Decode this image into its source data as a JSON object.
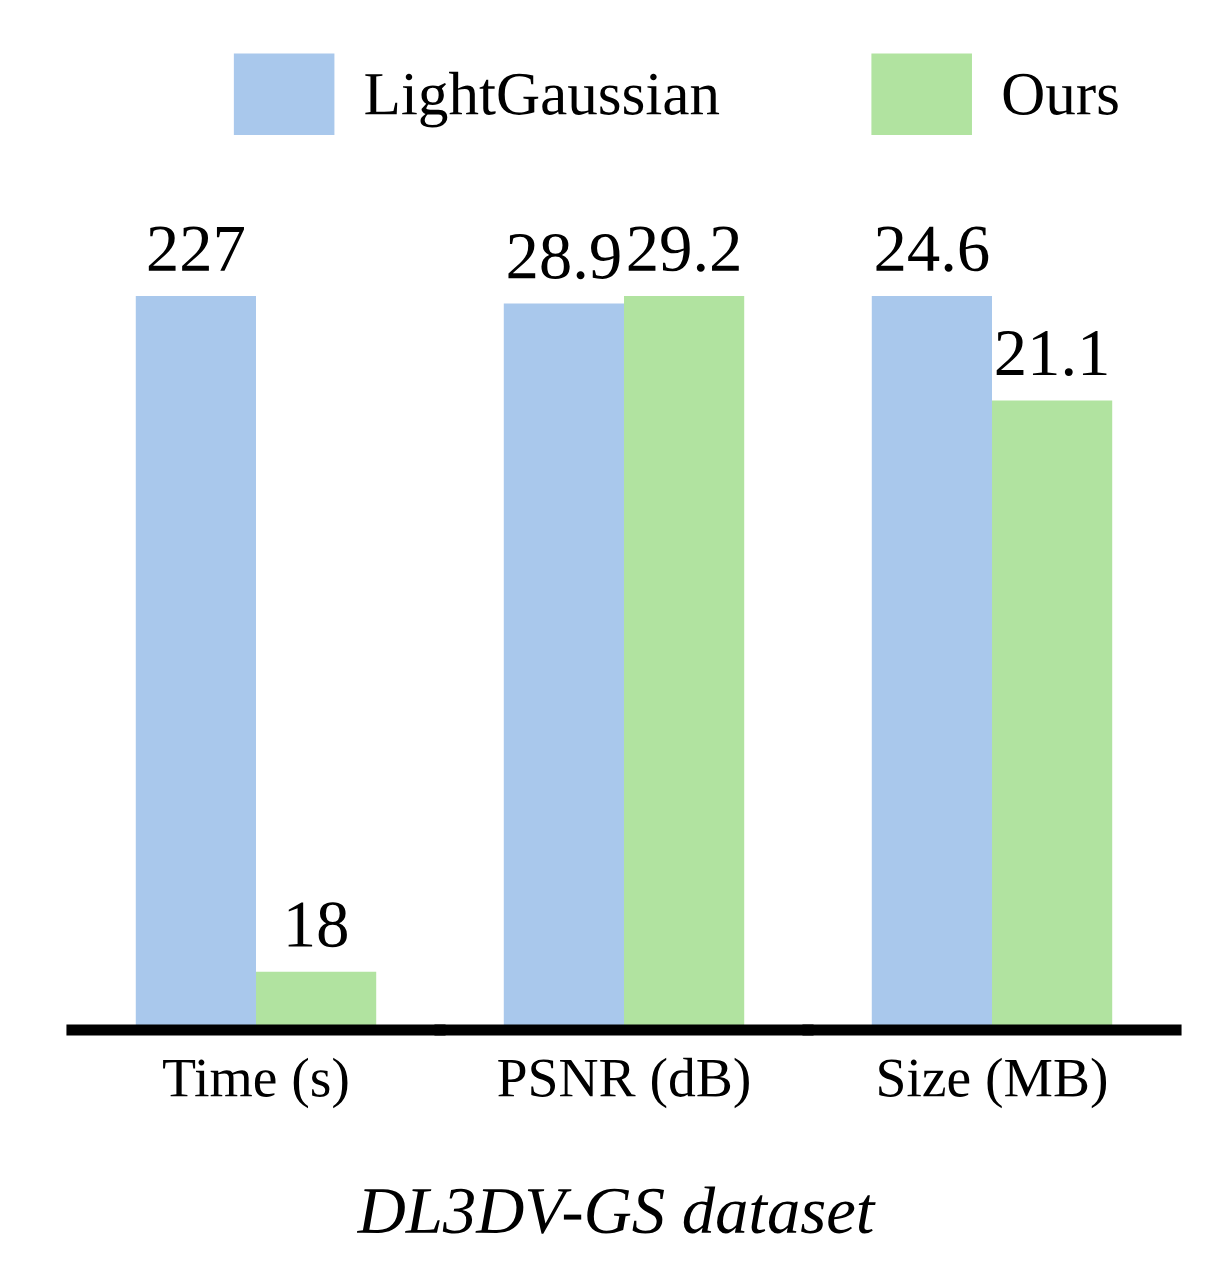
{
  "chart_data": [
    {
      "type": "bar",
      "categories": [
        "Time (s)"
      ],
      "tick_labels": "x",
      "data_labels": true,
      "legend": "top",
      "annotations": [
        "DL3DV-GS dataset"
      ],
      "series": [
        {
          "name": "LightGaussian",
          "color": "#a9c8ec",
          "values": [
            227
          ]
        },
        {
          "name": "Ours",
          "color": "#b1e3a0",
          "values": [
            18
          ]
        }
      ]
    },
    {
      "type": "bar",
      "categories": [
        "PSNR (dB)"
      ],
      "tick_labels": "x",
      "data_labels": true,
      "series": [
        {
          "color": "#a9c8ec",
          "values": [
            28.9
          ]
        },
        {
          "color": "#b1e3a0",
          "values": [
            29.2
          ]
        }
      ]
    },
    {
      "type": "bar",
      "categories": [
        "Size (MB)"
      ],
      "tick_labels": "x",
      "data_labels": true,
      "series": [
        {
          "color": "#a9c8ec",
          "values": [
            24.6
          ]
        },
        {
          "color": "#b1e3a0",
          "values": [
            21.1
          ]
        }
      ]
    }
  ]
}
